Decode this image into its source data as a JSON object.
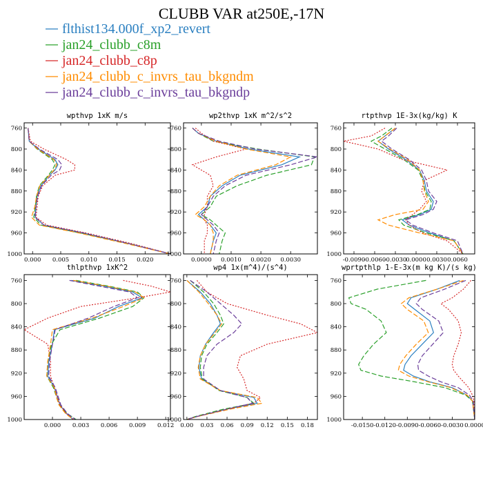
{
  "title": "CLUBB VAR at250E,-17N",
  "colors": {
    "flthist134.000f_xp2_revert": "#2a7fc0",
    "jan24_clubb_c8m": "#2aa02a",
    "jan24_clubb_c8p": "#d62728",
    "jan24_clubb_c_invrs_tau_bkgndm": "#ff8c00",
    "jan24_clubb_c_invrs_tau_bkgndp": "#6a3d9a"
  },
  "legend": [
    {
      "name": "flthist134.000f_xp2_revert",
      "style": "solid"
    },
    {
      "name": "jan24_clubb_c8m",
      "style": "dashed"
    },
    {
      "name": "jan24_clubb_c8p",
      "style": "dotted"
    },
    {
      "name": "jan24_clubb_c_invrs_tau_bkgndm",
      "style": "dashed"
    },
    {
      "name": "jan24_clubb_c_invrs_tau_bkgndp",
      "style": "dashed"
    }
  ],
  "chart_data": [
    {
      "type": "line",
      "title": "wpthvp  1xK m/s",
      "xlim": [
        -0.0015,
        0.0245
      ],
      "ylim": [
        750,
        1000
      ],
      "y_reversed": true,
      "xticks": [
        0.0,
        0.005,
        0.01,
        0.015,
        0.02
      ],
      "xtick_labels": [
        "0.000",
        "0.005",
        "0.010",
        "0.015",
        "0.020"
      ],
      "yticks": [
        760,
        800,
        840,
        880,
        920,
        960,
        1000
      ],
      "y": [
        760,
        785,
        800,
        820,
        830,
        840,
        850,
        870,
        890,
        910,
        930,
        945,
        960,
        980,
        1000
      ],
      "series": [
        {
          "name": "flthist134.000f_xp2_revert",
          "values": [
            -0.0008,
            -0.0006,
            0.001,
            0.004,
            0.0045,
            0.004,
            0.003,
            0.0015,
            0.0008,
            0.0006,
            0.0005,
            0.002,
            0.009,
            0.017,
            0.0245
          ]
        },
        {
          "name": "jan24_clubb_c8m",
          "values": [
            -0.0008,
            -0.0006,
            0.0008,
            0.0035,
            0.004,
            0.0035,
            0.0028,
            0.0012,
            0.0007,
            0.0005,
            0.0002,
            0.0015,
            0.0085,
            0.017,
            0.0245
          ]
        },
        {
          "name": "jan24_clubb_c8p",
          "values": [
            -0.0008,
            -0.0004,
            0.002,
            0.006,
            0.0075,
            0.0075,
            0.004,
            0.0018,
            0.001,
            0.0008,
            0.0006,
            0.0025,
            0.0095,
            0.0175,
            0.0245
          ]
        },
        {
          "name": "jan24_clubb_c_invrs_tau_bkgndm",
          "values": [
            -0.0008,
            -0.0006,
            0.0009,
            0.0038,
            0.0043,
            0.0038,
            0.003,
            0.0013,
            0.0007,
            0.0004,
            -0.0002,
            0.0012,
            0.0082,
            0.0165,
            0.0245
          ]
        },
        {
          "name": "jan24_clubb_c_invrs_tau_bkgndp",
          "values": [
            -0.0008,
            -0.0006,
            0.0012,
            0.0045,
            0.0052,
            0.0048,
            0.0033,
            0.0016,
            0.0009,
            0.0006,
            0.0004,
            0.002,
            0.009,
            0.017,
            0.0245
          ]
        }
      ]
    },
    {
      "type": "line",
      "title": "wp2thvp  1xK m^2/s^2",
      "xlim": [
        -0.0006,
        0.0039
      ],
      "ylim": [
        750,
        1000
      ],
      "y_reversed": true,
      "xticks": [
        0.0,
        0.001,
        0.002,
        0.003
      ],
      "xtick_labels": [
        "0.0000",
        "0.0010",
        "0.0020",
        "0.0030"
      ],
      "yticks": [
        760,
        800,
        840,
        880,
        920,
        960,
        1000
      ],
      "y": [
        760,
        770,
        785,
        800,
        815,
        830,
        850,
        870,
        890,
        910,
        925,
        935,
        945,
        960,
        975,
        1000
      ],
      "series": [
        {
          "name": "flthist134.000f_xp2_revert",
          "values": [
            -0.0003,
            -0.0001,
            0.0005,
            0.0016,
            0.0033,
            0.0027,
            0.0013,
            0.0007,
            0.0003,
            0.0002,
            -0.0001,
            0.0001,
            0.0003,
            0.0005,
            0.0004,
            0.0003
          ]
        },
        {
          "name": "jan24_clubb_c8m",
          "values": [
            -0.0003,
            -0.0001,
            0.0004,
            0.0019,
            0.0038,
            0.0037,
            0.0022,
            0.0012,
            0.0005,
            0.0003,
            0.0,
            0.0003,
            0.0005,
            0.0008,
            0.0007,
            0.0006
          ]
        },
        {
          "name": "jan24_clubb_c8p",
          "values": [
            -0.0002,
            0.0,
            0.0004,
            0.0015,
            0.0005,
            -0.0003,
            0.0003,
            0.0004,
            0.0002,
            0.0002,
            0.0001,
            0.0001,
            0.0002,
            0.0002,
            0.0001,
            0.0001
          ]
        },
        {
          "name": "jan24_clubb_c_invrs_tau_bkgndm",
          "values": [
            -0.0003,
            -0.0001,
            0.0005,
            0.0015,
            0.003,
            0.0025,
            0.0012,
            0.0006,
            0.0003,
            0.0001,
            -0.0002,
            0.0001,
            0.0003,
            0.0004,
            0.0004,
            0.0003
          ]
        },
        {
          "name": "jan24_clubb_c_invrs_tau_bkgndp",
          "values": [
            -0.0003,
            -0.0001,
            0.0006,
            0.0018,
            0.0039,
            0.003,
            0.0015,
            0.0008,
            0.0004,
            0.0002,
            0.0,
            0.0002,
            0.0004,
            0.0006,
            0.0005,
            0.0004
          ]
        }
      ]
    },
    {
      "type": "line",
      "title": "rtpthvp  1E-3x(kg/kg) K",
      "xlim": [
        -0.0105,
        0.0085
      ],
      "ylim": [
        750,
        1000
      ],
      "y_reversed": true,
      "xticks": [
        -0.009,
        -0.006,
        -0.003,
        0.0,
        0.003,
        0.006
      ],
      "xtick_labels": [
        "-0.0090",
        "-0.0060",
        "-0.0030",
        "0.0000",
        "0.0030",
        "0.0060"
      ],
      "yticks": [
        760,
        800,
        840,
        880,
        920,
        960,
        1000
      ],
      "y": [
        760,
        775,
        785,
        800,
        820,
        840,
        860,
        880,
        900,
        915,
        925,
        935,
        945,
        960,
        975,
        1000
      ],
      "series": [
        {
          "name": "flthist134.000f_xp2_revert",
          "values": [
            -0.003,
            -0.0045,
            -0.0055,
            -0.004,
            -0.0015,
            0.0005,
            0.0012,
            0.0015,
            0.0025,
            0.0022,
            0.0005,
            -0.002,
            -0.001,
            0.002,
            0.0055,
            0.0068
          ]
        },
        {
          "name": "jan24_clubb_c8m",
          "values": [
            -0.0035,
            -0.005,
            -0.0065,
            -0.0045,
            -0.0018,
            0.0003,
            0.001,
            0.0013,
            0.0022,
            0.002,
            0.0002,
            -0.0025,
            -0.0018,
            0.0015,
            0.0055,
            0.0068
          ]
        },
        {
          "name": "jan24_clubb_c8p",
          "values": [
            -0.0045,
            -0.0065,
            -0.0105,
            -0.0055,
            -0.002,
            0.0045,
            0.0012,
            0.0008,
            0.0015,
            0.0005,
            -0.0005,
            -0.0015,
            -0.001,
            0.001,
            0.0045,
            0.0068
          ]
        },
        {
          "name": "jan24_clubb_c_invrs_tau_bkgndm",
          "values": [
            -0.003,
            -0.0045,
            -0.0055,
            -0.0038,
            -0.0012,
            0.0005,
            0.001,
            0.0012,
            0.0018,
            0.001,
            -0.003,
            -0.0055,
            -0.004,
            0.0005,
            0.0055,
            0.0068
          ]
        },
        {
          "name": "jan24_clubb_c_invrs_tau_bkgndp",
          "values": [
            -0.0028,
            -0.004,
            -0.005,
            -0.0035,
            -0.001,
            0.0008,
            0.0015,
            0.0018,
            0.003,
            0.0025,
            0.001,
            -0.0015,
            -0.0005,
            0.0025,
            0.006,
            0.0068
          ]
        }
      ]
    },
    {
      "type": "line",
      "title": "thlpthvp  1xK^2",
      "xlim": [
        -0.003,
        0.0125
      ],
      "ylim": [
        750,
        1000
      ],
      "y_reversed": true,
      "xticks": [
        0.0,
        0.003,
        0.006,
        0.009,
        0.012
      ],
      "xtick_labels": [
        "0.000",
        "0.003",
        "0.006",
        "0.009",
        "0.012"
      ],
      "yticks": [
        760,
        800,
        840,
        880,
        920,
        960,
        1000
      ],
      "y": [
        760,
        770,
        780,
        790,
        805,
        825,
        845,
        870,
        900,
        925,
        945,
        960,
        975,
        990,
        1000
      ],
      "series": [
        {
          "name": "flthist134.000f_xp2_revert",
          "values": [
            0.002,
            0.0055,
            0.0085,
            0.0095,
            0.007,
            0.0045,
            0.0002,
            0.0,
            -0.0004,
            -0.0005,
            0.0002,
            0.0005,
            0.0008,
            0.0015,
            0.0022
          ]
        },
        {
          "name": "jan24_clubb_c8m",
          "values": [
            0.0025,
            0.006,
            0.009,
            0.0097,
            0.0085,
            0.005,
            0.0008,
            -0.0001,
            -0.0005,
            -0.0006,
            0.0001,
            0.0004,
            0.0007,
            0.0016,
            0.0025
          ]
        },
        {
          "name": "jan24_clubb_c8p",
          "values": [
            0.0075,
            0.0105,
            0.0125,
            0.009,
            0.003,
            -0.0005,
            -0.003,
            -0.0005,
            -0.0002,
            -0.0002,
            0.0002,
            0.0005,
            0.0008,
            0.0015,
            0.0022
          ]
        },
        {
          "name": "jan24_clubb_c_invrs_tau_bkgndm",
          "values": [
            0.0022,
            0.0058,
            0.0088,
            0.0097,
            0.0075,
            0.0042,
            0.0,
            -0.0002,
            -0.0005,
            -0.0006,
            0.0002,
            0.0004,
            0.0007,
            0.0014,
            0.0022
          ]
        },
        {
          "name": "jan24_clubb_c_invrs_tau_bkgndp",
          "values": [
            0.0018,
            0.005,
            0.0082,
            0.009,
            0.0065,
            0.0038,
            0.0003,
            0.0,
            -0.0003,
            -0.0004,
            0.0003,
            0.0006,
            0.0009,
            0.0016,
            0.0024
          ]
        }
      ]
    },
    {
      "type": "line",
      "title": "wp4  1x(m^4)/(s^4)",
      "xlim": [
        -0.005,
        0.195
      ],
      "ylim": [
        750,
        1000
      ],
      "y_reversed": true,
      "xticks": [
        0.0,
        0.03,
        0.06,
        0.09,
        0.12,
        0.15,
        0.18
      ],
      "xtick_labels": [
        "0.00",
        "0.03",
        "0.06",
        "0.09",
        "0.12",
        "0.15",
        "0.18"
      ],
      "yticks": [
        760,
        800,
        840,
        880,
        920,
        960,
        1000
      ],
      "y": [
        760,
        780,
        800,
        820,
        835,
        850,
        870,
        890,
        910,
        930,
        950,
        962,
        972,
        982,
        995,
        1000
      ],
      "series": [
        {
          "name": "flthist134.000f_xp2_revert",
          "values": [
            0.0,
            0.02,
            0.035,
            0.045,
            0.05,
            0.04,
            0.028,
            0.02,
            0.018,
            0.022,
            0.05,
            0.1,
            0.105,
            0.06,
            0.015,
            0.0
          ]
        },
        {
          "name": "jan24_clubb_c8m",
          "values": [
            0.005,
            0.025,
            0.04,
            0.05,
            0.055,
            0.045,
            0.03,
            0.022,
            0.02,
            0.023,
            0.048,
            0.09,
            0.1,
            0.055,
            0.012,
            0.0
          ]
        },
        {
          "name": "jan24_clubb_c8p",
          "values": [
            0.015,
            0.03,
            0.06,
            0.12,
            0.17,
            0.195,
            0.12,
            0.08,
            0.075,
            0.085,
            0.09,
            0.11,
            0.1,
            0.06,
            0.015,
            0.0
          ]
        },
        {
          "name": "jan24_clubb_c_invrs_tau_bkgndm",
          "values": [
            0.0,
            0.018,
            0.032,
            0.045,
            0.052,
            0.042,
            0.028,
            0.02,
            0.017,
            0.02,
            0.05,
            0.105,
            0.112,
            0.065,
            0.015,
            0.0
          ]
        },
        {
          "name": "jan24_clubb_c_invrs_tau_bkgndp",
          "values": [
            0.005,
            0.03,
            0.05,
            0.07,
            0.082,
            0.07,
            0.045,
            0.03,
            0.025,
            0.025,
            0.05,
            0.09,
            0.098,
            0.06,
            0.014,
            0.0
          ]
        }
      ]
    },
    {
      "type": "line",
      "title": "wprtpthlp  1-E-3x(m kg K)/(s kg)",
      "xlim": [
        -0.0175,
        0.0
      ],
      "ylim": [
        750,
        1000
      ],
      "y_reversed": true,
      "xticks": [
        -0.015,
        -0.012,
        -0.009,
        -0.006,
        -0.003,
        0.0
      ],
      "xtick_labels": [
        "-0.0150",
        "-0.0120",
        "-0.0090",
        "-0.0060",
        "-0.0030",
        "0.0000"
      ],
      "yticks": [
        760,
        800,
        840,
        880,
        920,
        960,
        1000
      ],
      "y": [
        760,
        775,
        790,
        800,
        810,
        830,
        850,
        870,
        890,
        905,
        915,
        925,
        935,
        945,
        958,
        968,
        1000
      ],
      "series": [
        {
          "name": "flthist134.000f_xp2_revert",
          "values": [
            -0.002,
            -0.005,
            -0.0085,
            -0.009,
            -0.008,
            -0.006,
            -0.0055,
            -0.007,
            -0.0085,
            -0.0093,
            -0.0095,
            -0.0082,
            -0.006,
            -0.003,
            -0.001,
            -0.0003,
            0.0
          ]
        },
        {
          "name": "jan24_clubb_c8m",
          "values": [
            -0.0065,
            -0.013,
            -0.0168,
            -0.0165,
            -0.0145,
            -0.0125,
            -0.0118,
            -0.0135,
            -0.0148,
            -0.0155,
            -0.0152,
            -0.0125,
            -0.008,
            -0.004,
            -0.0012,
            -0.0003,
            0.0
          ]
        },
        {
          "name": "jan24_clubb_c8p",
          "values": [
            -0.0005,
            -0.0015,
            -0.003,
            -0.0045,
            -0.0035,
            -0.0022,
            -0.0018,
            -0.0022,
            -0.0028,
            -0.003,
            -0.0028,
            -0.0022,
            -0.0015,
            -0.0008,
            -0.0003,
            -0.0001,
            0.0
          ]
        },
        {
          "name": "jan24_clubb_c_invrs_tau_bkgndm",
          "values": [
            -0.0015,
            -0.005,
            -0.0088,
            -0.0098,
            -0.009,
            -0.0068,
            -0.0062,
            -0.0078,
            -0.0092,
            -0.01,
            -0.0102,
            -0.0088,
            -0.0062,
            -0.0032,
            -0.001,
            -0.0003,
            0.0
          ]
        },
        {
          "name": "jan24_clubb_c_invrs_tau_bkgndp",
          "values": [
            -0.0012,
            -0.004,
            -0.0072,
            -0.0078,
            -0.007,
            -0.0048,
            -0.0042,
            -0.0056,
            -0.007,
            -0.0076,
            -0.0075,
            -0.0062,
            -0.0045,
            -0.0022,
            -0.0007,
            -0.0002,
            0.0
          ]
        }
      ]
    }
  ]
}
